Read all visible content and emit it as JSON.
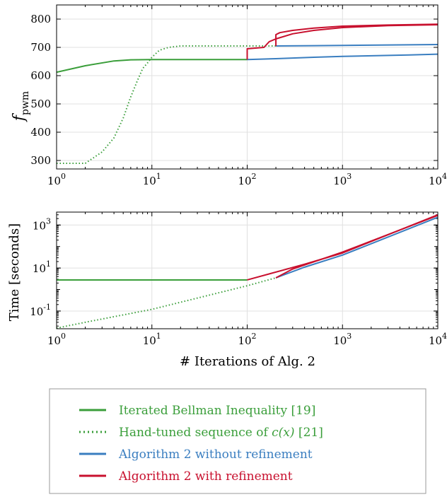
{
  "colors": {
    "green": "#3a9e3a",
    "blue": "#3a7ec0",
    "red": "#c8102e"
  },
  "chart_data": [
    {
      "type": "line",
      "xscale": "log",
      "xlim": [
        1,
        10000
      ],
      "ylim": [
        270,
        850
      ],
      "ylabel": "f_pwm",
      "ylabel_main": "f",
      "ylabel_sub": "pwm",
      "grid": true,
      "x_ticks": [
        "10",
        "10",
        "10",
        "10",
        "10"
      ],
      "x_tick_exps": [
        "0",
        "1",
        "2",
        "3",
        "4"
      ],
      "y_ticks": [
        "300",
        "400",
        "500",
        "600",
        "700",
        "800"
      ],
      "series": [
        {
          "name": "Iterated Bellman Inequality [19]",
          "color": "green",
          "dash": "solid",
          "x": [
            1,
            2,
            4,
            6,
            10,
            100
          ],
          "y": [
            612,
            635,
            652,
            656,
            657,
            657
          ]
        },
        {
          "name": "Hand-tuned sequence of c(x) [21]",
          "color": "green",
          "dash": "dotted",
          "x": [
            1,
            2,
            3,
            4,
            5,
            6,
            7,
            8,
            9,
            10,
            12,
            15,
            20,
            200
          ],
          "y": [
            290,
            290,
            330,
            380,
            450,
            525,
            580,
            625,
            645,
            665,
            690,
            700,
            705,
            705
          ]
        },
        {
          "name": "Algorithm 2 without refinement",
          "color": "blue",
          "dash": "solid",
          "x": [
            100,
            200,
            500,
            1000,
            5000,
            10000
          ],
          "y": [
            657,
            660,
            665,
            668,
            673,
            676
          ]
        },
        {
          "name": "Algorithm 2 without refinement",
          "color": "blue",
          "dash": "solid",
          "x": [
            200,
            500,
            1000,
            5000,
            10000
          ],
          "y": [
            705,
            706,
            707,
            709,
            710
          ]
        },
        {
          "name": "Algorithm 2 with refinement",
          "color": "red",
          "dash": "solid",
          "x": [
            100,
            100,
            150,
            170,
            200,
            300,
            500,
            1000,
            3000,
            10000
          ],
          "y": [
            657,
            695,
            700,
            720,
            730,
            748,
            760,
            770,
            777,
            780
          ]
        },
        {
          "name": "Algorithm 2 with refinement",
          "color": "red",
          "dash": "solid",
          "x": [
            200,
            200,
            220,
            300,
            500,
            1000,
            3000,
            10000
          ],
          "y": [
            705,
            745,
            752,
            760,
            768,
            775,
            779,
            782
          ]
        }
      ]
    },
    {
      "type": "line",
      "xscale": "log",
      "yscale": "log",
      "xlim": [
        1,
        10000
      ],
      "ylim": [
        0.015,
        4000
      ],
      "xlabel": "# Iterations of Alg. 2",
      "ylabel": "Time [seconds]",
      "grid": true,
      "x_ticks": [
        "10",
        "10",
        "10",
        "10",
        "10"
      ],
      "x_tick_exps": [
        "0",
        "1",
        "2",
        "3",
        "4"
      ],
      "y_ticks": [
        "10",
        "10",
        "10"
      ],
      "y_tick_exps": [
        "-1",
        "1",
        "3"
      ],
      "series": [
        {
          "name": "Iterated Bellman Inequality [19]",
          "color": "green",
          "dash": "solid",
          "x": [
            1,
            100
          ],
          "y": [
            2.8,
            2.8
          ]
        },
        {
          "name": "Hand-tuned sequence of c(x) [21]",
          "color": "green",
          "dash": "dotted",
          "x": [
            1,
            2,
            10,
            100,
            200
          ],
          "y": [
            0.016,
            0.03,
            0.12,
            1.5,
            3.5
          ]
        },
        {
          "name": "Algorithm 2 without refinement",
          "color": "blue",
          "dash": "solid",
          "x": [
            200,
            400,
            1000,
            10000
          ],
          "y": [
            3.5,
            11,
            40,
            2300
          ]
        },
        {
          "name": "Algorithm 2 with refinement",
          "color": "red",
          "dash": "solid",
          "x": [
            100,
            400,
            1000,
            10000
          ],
          "y": [
            2.8,
            15,
            50,
            3000
          ]
        },
        {
          "name": "Algorithm 2 with refinement",
          "color": "red",
          "dash": "solid",
          "x": [
            200,
            300,
            1000,
            10000
          ],
          "y": [
            3.5,
            9,
            55,
            2800
          ]
        }
      ]
    }
  ],
  "legend": [
    {
      "label": "Iterated Bellman Inequality [19]",
      "color": "green",
      "dash": "solid"
    },
    {
      "label_pre": "Hand-tuned sequence of ",
      "label_math": "c(x)",
      "label_post": " [21]",
      "color": "green",
      "dash": "dotted"
    },
    {
      "label": "Algorithm 2 without refinement",
      "color": "blue",
      "dash": "solid"
    },
    {
      "label": "Algorithm 2 with refinement",
      "color": "red",
      "dash": "solid"
    }
  ]
}
